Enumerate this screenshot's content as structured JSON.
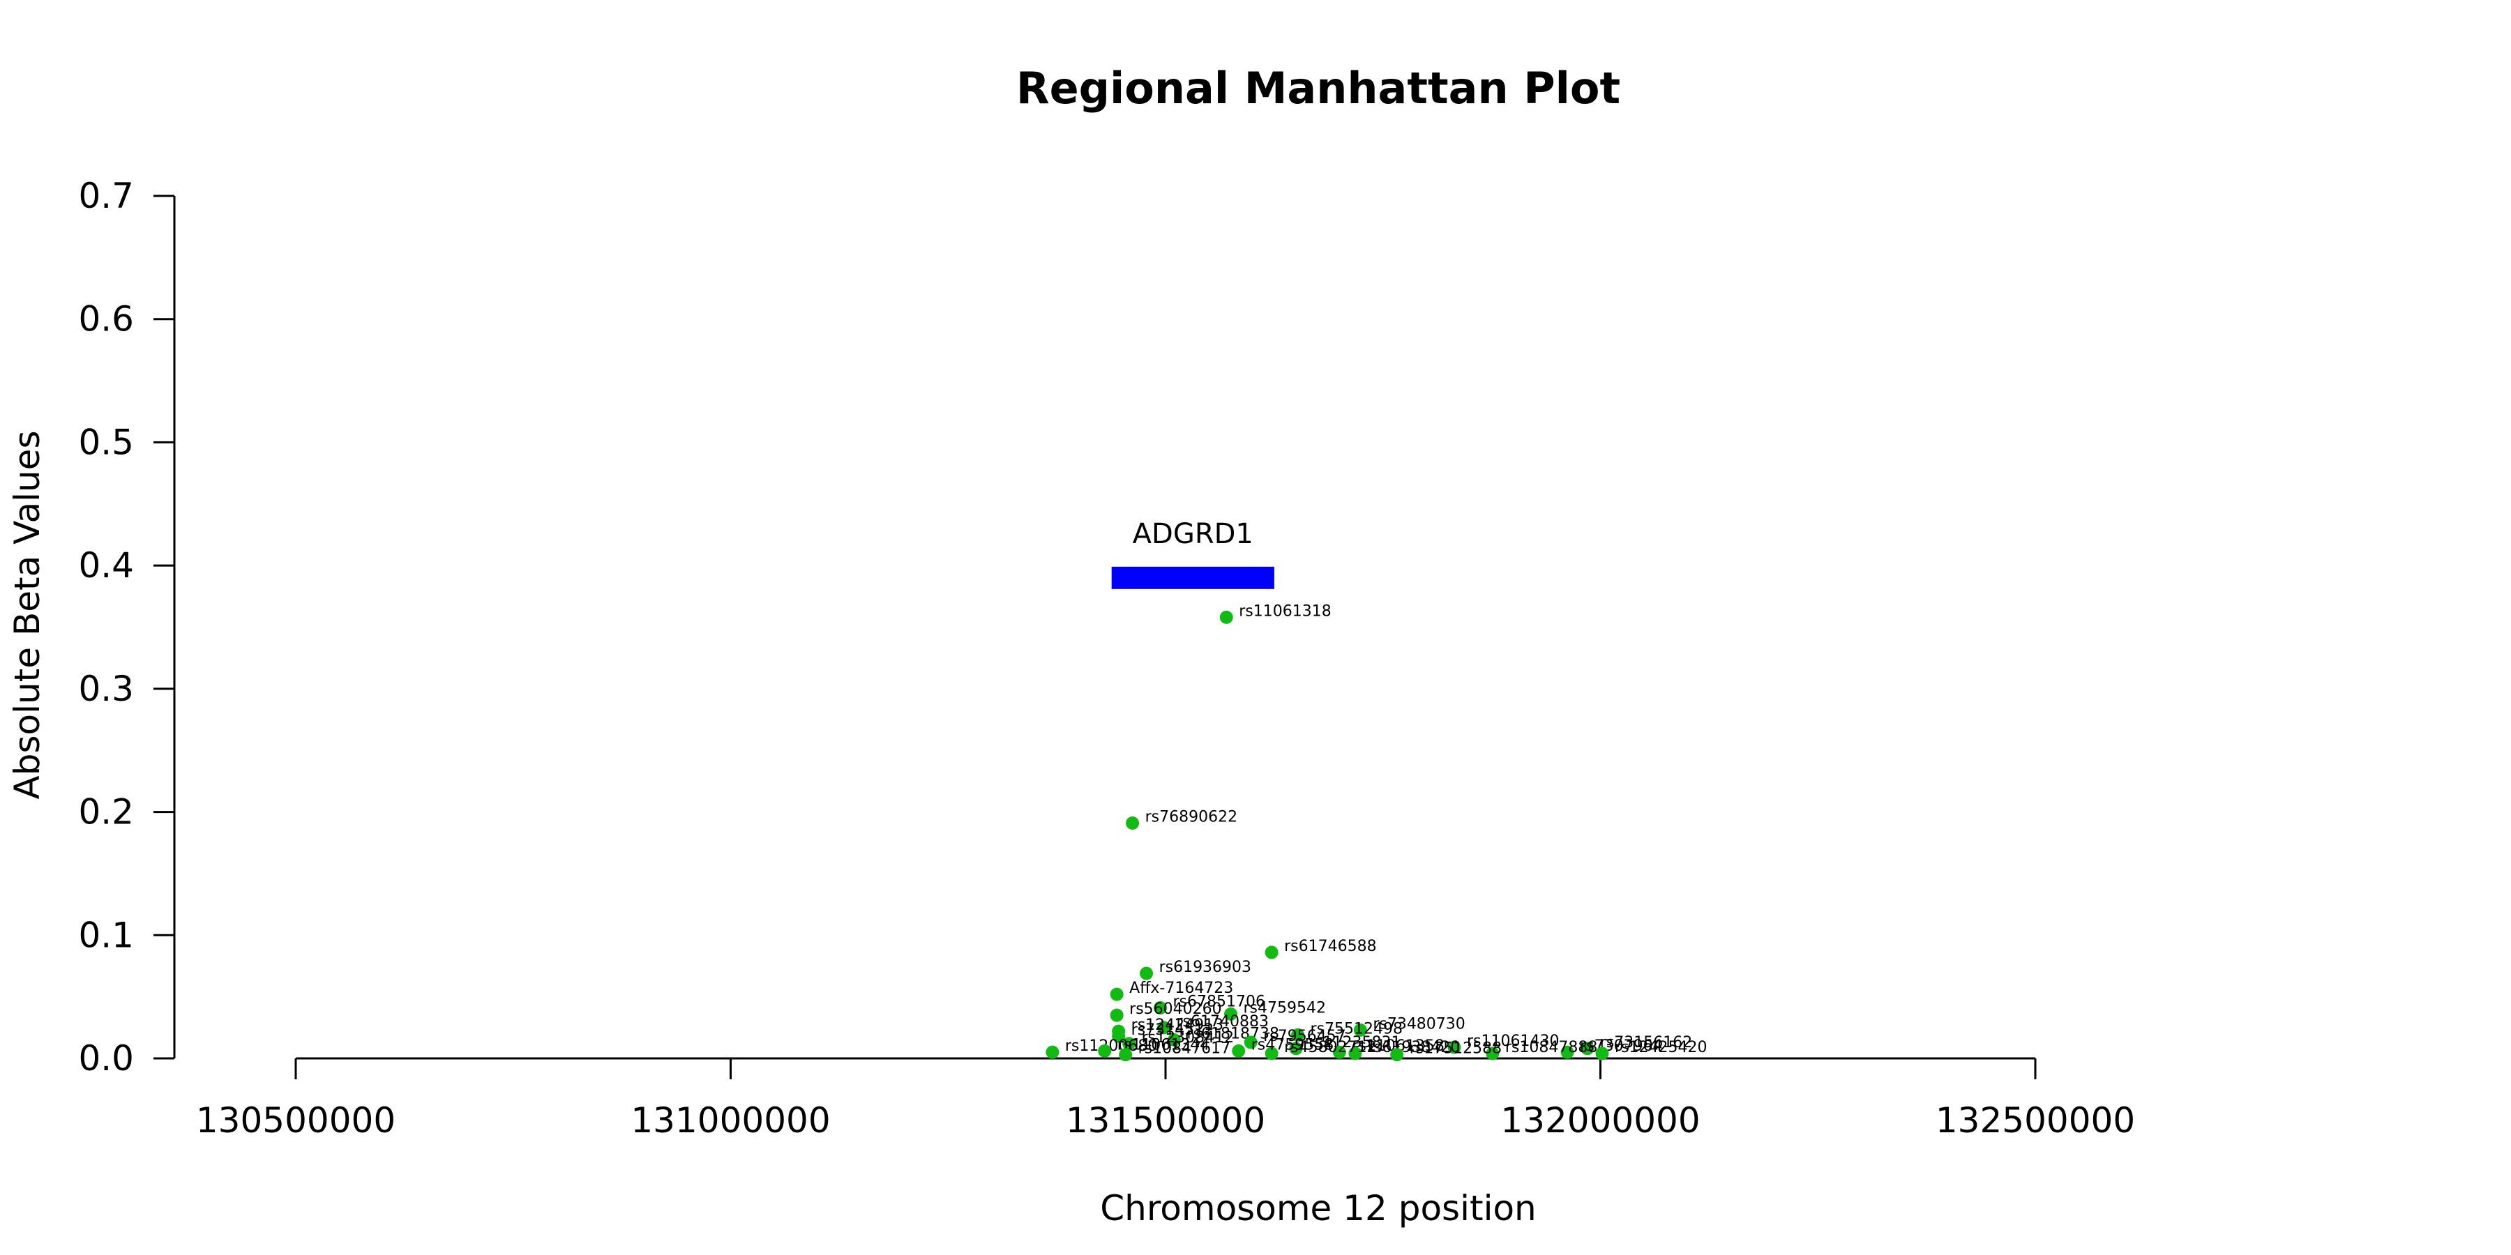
{
  "chart_data": {
    "type": "scatter",
    "title": "Regional Manhattan Plot",
    "xlabel": "Chromosome 12 position",
    "ylabel": "Absolute Beta Values",
    "xlim": [
      130500000,
      132500000
    ],
    "ylim": [
      0,
      0.7
    ],
    "x_ticks": [
      130500000,
      131000000,
      131500000,
      132000000,
      132500000
    ],
    "x_tick_labels": [
      "130500000",
      "131000000",
      "131500000",
      "132000000",
      "132500000"
    ],
    "y_ticks": [
      0,
      0.1,
      0.2,
      0.3,
      0.4,
      0.5,
      0.6,
      0.7
    ],
    "y_tick_labels": [
      "0.0",
      "0.1",
      "0.2",
      "0.3",
      "0.4",
      "0.5",
      "0.6",
      "0.7"
    ],
    "point_color": "#11bb11",
    "gene_color": "#0000ff",
    "genes": [
      {
        "name": "ADGRD1",
        "start": 131438000,
        "end": 131625000,
        "y": 0.39
      }
    ],
    "points": [
      {
        "label": "rs11061318",
        "x": 131570000,
        "y": 0.358
      },
      {
        "label": "rs76890622",
        "x": 131462000,
        "y": 0.191
      },
      {
        "label": "rs61746588",
        "x": 131622000,
        "y": 0.086
      },
      {
        "label": "rs61936903",
        "x": 131478000,
        "y": 0.069
      },
      {
        "label": "Affx-7164723",
        "x": 131444000,
        "y": 0.052
      },
      {
        "label": "rs67851706",
        "x": 131494000,
        "y": 0.041
      },
      {
        "label": "rs4759542",
        "x": 131575000,
        "y": 0.036
      },
      {
        "label": "rs56040260",
        "x": 131444000,
        "y": 0.035
      },
      {
        "label": "rs73480730",
        "x": 131724000,
        "y": 0.023
      },
      {
        "label": "rs61740883",
        "x": 131498000,
        "y": 0.025
      },
      {
        "label": "rs12424913",
        "x": 131446000,
        "y": 0.022
      },
      {
        "label": "rs75512498",
        "x": 131652000,
        "y": 0.019
      },
      {
        "label": "rs7314512",
        "x": 131446000,
        "y": 0.018
      },
      {
        "label": "rs61818738",
        "x": 131510000,
        "y": 0.015
      },
      {
        "label": "rs7956457",
        "x": 131598000,
        "y": 0.013
      },
      {
        "label": "rs12308412",
        "x": 131458000,
        "y": 0.012
      },
      {
        "label": "rs11061430",
        "x": 131832000,
        "y": 0.009
      },
      {
        "label": "rs11235831",
        "x": 131650000,
        "y": 0.008
      },
      {
        "label": "rs73156162",
        "x": 131985000,
        "y": 0.008
      },
      {
        "label": "rs11200680",
        "x": 131370000,
        "y": 0.005
      },
      {
        "label": "rs11061344",
        "x": 131430000,
        "y": 0.006
      },
      {
        "label": "rs7307964",
        "x": 131962000,
        "y": 0.005
      },
      {
        "label": "rs12425420",
        "x": 132002000,
        "y": 0.004
      },
      {
        "label": "rs11061358",
        "x": 131700000,
        "y": 0.005
      },
      {
        "label": "rs10847888",
        "x": 131876000,
        "y": 0.004
      },
      {
        "label": "rs61938420",
        "x": 131718000,
        "y": 0.004
      },
      {
        "label": "rs45802712",
        "x": 131622000,
        "y": 0.004
      },
      {
        "label": "rs17512588",
        "x": 131766000,
        "y": 0.003
      },
      {
        "label": "rs10847617",
        "x": 131454000,
        "y": 0.003
      },
      {
        "label": "rs4759558",
        "x": 131584000,
        "y": 0.006
      }
    ]
  }
}
